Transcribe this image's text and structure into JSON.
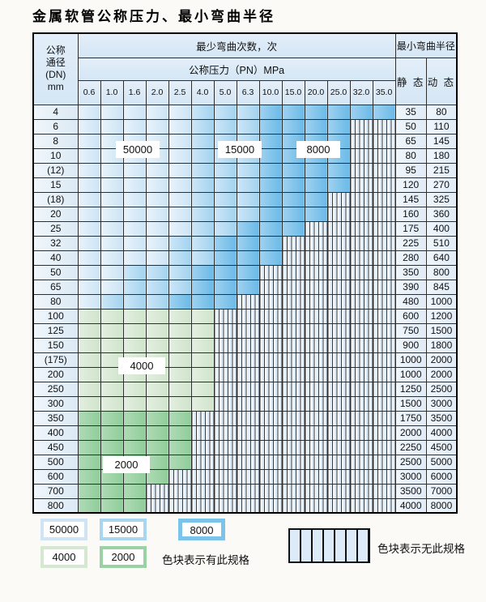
{
  "page": {
    "title": "金属软管公称压力、最小弯曲半径"
  },
  "table": {
    "header": {
      "dn_lines": [
        "公称",
        "通径",
        "(DN)",
        "mm"
      ],
      "cycles_label": "最少弯曲次数，次",
      "pressure_label": "公称压力（PN）MPa",
      "pressure_values": [
        "0.6",
        "1.0",
        "1.6",
        "2.0",
        "2.5",
        "4.0",
        "5.0",
        "6.3",
        "10.0",
        "15.0",
        "20.0",
        "25.0",
        "32.0",
        "35.0"
      ],
      "radius_label": "最小弯曲半径",
      "static_label": "静 态",
      "dynamic_label": "动 态"
    },
    "zone_meaning": {
      "b1": "50000",
      "b2": "15000",
      "b3": "8000",
      "g1": "4000",
      "g2": "2000",
      "h": "无此规格"
    },
    "rows": [
      {
        "dn": "4",
        "zones": {
          "b1": 5,
          "b2": 3,
          "b3": 6
        },
        "static": "35",
        "dynamic": "80"
      },
      {
        "dn": "6",
        "zones": {
          "b1": 5,
          "b2": 3,
          "b3": 4
        },
        "static": "50",
        "dynamic": "110"
      },
      {
        "dn": "8",
        "zones": {
          "b1": 5,
          "b2": 3,
          "b3": 4
        },
        "static": "65",
        "dynamic": "145"
      },
      {
        "dn": "10",
        "zones": {
          "b1": 5,
          "b2": 3,
          "b3": 4
        },
        "static": "80",
        "dynamic": "180"
      },
      {
        "dn": "(12)",
        "zones": {
          "b1": 5,
          "b2": 3,
          "b3": 4
        },
        "static": "95",
        "dynamic": "215"
      },
      {
        "dn": "15",
        "zones": {
          "b1": 5,
          "b2": 3,
          "b3": 4
        },
        "static": "120",
        "dynamic": "270"
      },
      {
        "dn": "(18)",
        "zones": {
          "b1": 5,
          "b2": 3,
          "b3": 3
        },
        "static": "145",
        "dynamic": "325"
      },
      {
        "dn": "20",
        "zones": {
          "b1": 5,
          "b2": 3,
          "b3": 3
        },
        "static": "160",
        "dynamic": "360"
      },
      {
        "dn": "25",
        "zones": {
          "b1": 5,
          "b2": 2,
          "b3": 3
        },
        "static": "175",
        "dynamic": "400"
      },
      {
        "dn": "32",
        "zones": {
          "b1": 4,
          "b2": 2,
          "b3": 3
        },
        "static": "225",
        "dynamic": "510"
      },
      {
        "dn": "40",
        "zones": {
          "b1": 4,
          "b2": 2,
          "b3": 3
        },
        "static": "280",
        "dynamic": "640"
      },
      {
        "dn": "50",
        "zones": {
          "b1": 2,
          "b2": 3,
          "b3": 3
        },
        "static": "350",
        "dynamic": "800"
      },
      {
        "dn": "65",
        "zones": {
          "b1": 2,
          "b2": 3,
          "b3": 3
        },
        "static": "390",
        "dynamic": "845"
      },
      {
        "dn": "80",
        "zones": {
          "b1": 1,
          "b2": 3,
          "b3": 3
        },
        "static": "480",
        "dynamic": "1000"
      },
      {
        "dn": "100",
        "zones": {
          "g1": 6
        },
        "static": "600",
        "dynamic": "1200"
      },
      {
        "dn": "125",
        "zones": {
          "g1": 6
        },
        "static": "750",
        "dynamic": "1500"
      },
      {
        "dn": "150",
        "zones": {
          "g1": 6
        },
        "static": "900",
        "dynamic": "1800"
      },
      {
        "dn": "(175)",
        "zones": {
          "g1": 6
        },
        "static": "1000",
        "dynamic": "2000"
      },
      {
        "dn": "200",
        "zones": {
          "g1": 6
        },
        "static": "1000",
        "dynamic": "2000"
      },
      {
        "dn": "250",
        "zones": {
          "g1": 6
        },
        "static": "1250",
        "dynamic": "2500"
      },
      {
        "dn": "300",
        "zones": {
          "g1": 6
        },
        "static": "1500",
        "dynamic": "3000"
      },
      {
        "dn": "350",
        "zones": {
          "g2": 5
        },
        "static": "1750",
        "dynamic": "3500"
      },
      {
        "dn": "400",
        "zones": {
          "g2": 5
        },
        "static": "2000",
        "dynamic": "4000"
      },
      {
        "dn": "450",
        "zones": {
          "g2": 5
        },
        "static": "2250",
        "dynamic": "4500"
      },
      {
        "dn": "500",
        "zones": {
          "g2": 5
        },
        "static": "2500",
        "dynamic": "5000"
      },
      {
        "dn": "600",
        "zones": {
          "g2": 4
        },
        "static": "3000",
        "dynamic": "6000"
      },
      {
        "dn": "700",
        "zones": {
          "g2": 3
        },
        "static": "3500",
        "dynamic": "7000"
      },
      {
        "dn": "800",
        "zones": {
          "g2": 3
        },
        "static": "4000",
        "dynamic": "8000"
      }
    ]
  },
  "overlays": [
    {
      "text": "50000"
    },
    {
      "text": "15000"
    },
    {
      "text": "8000"
    },
    {
      "text": "4000"
    },
    {
      "text": "2000"
    }
  ],
  "legend": {
    "items": [
      {
        "label": "50000",
        "color": "#cfe5f6"
      },
      {
        "label": "15000",
        "color": "#a8d6f1"
      },
      {
        "label": "8000",
        "color": "#7cc3ea"
      },
      {
        "label": "4000",
        "color": "#d5e8d1"
      },
      {
        "label": "2000",
        "color": "#9bd2a3"
      }
    ],
    "has_spec_note": "色块表示有此规格",
    "no_spec_note": "色块表示无此规格"
  },
  "colors": {
    "zone_50000": "#cfe5f6",
    "zone_15000": "#a8d6f1",
    "zone_8000": "#7cc3ea",
    "zone_4000": "#d5e8d1",
    "zone_2000": "#9bd2a3",
    "header_bg": "#d9e8f6",
    "grid_line": "#2e2e2e",
    "page_bg": "#fbfaf6"
  }
}
